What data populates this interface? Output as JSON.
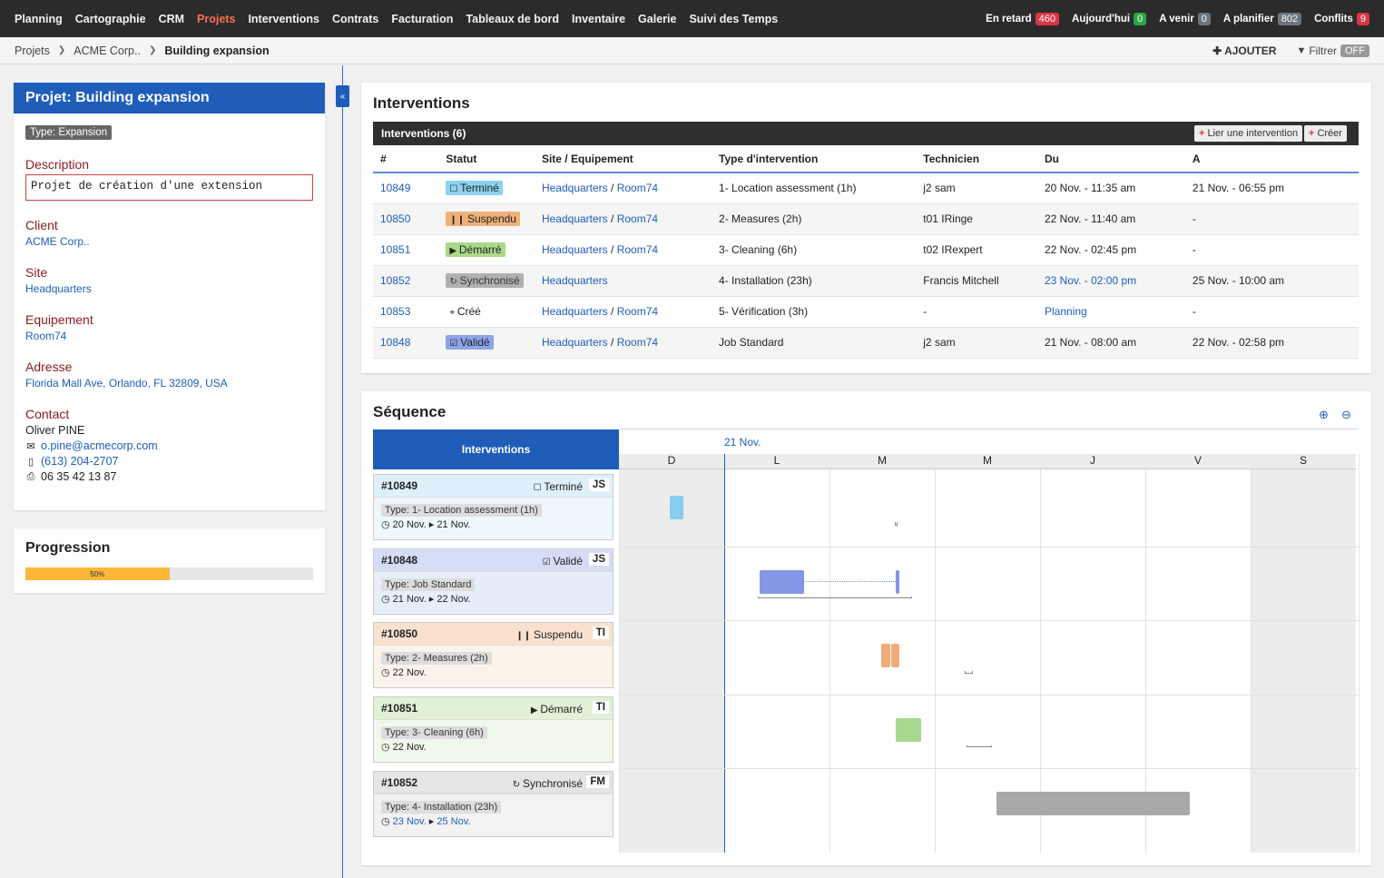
{
  "nav": {
    "items": [
      "Planning",
      "Cartographie",
      "CRM",
      "Projets",
      "Interventions",
      "Contrats",
      "Facturation",
      "Tableaux de bord",
      "Inventaire",
      "Galerie",
      "Suivi des Temps"
    ],
    "active": "Projets",
    "counters": [
      {
        "label": "En retard",
        "count": "460",
        "color": "#dc3545"
      },
      {
        "label": "Aujourd'hui",
        "count": "0",
        "color": "#28a745"
      },
      {
        "label": "A venir",
        "count": "0",
        "color": "#6c757d"
      },
      {
        "label": "A planifier",
        "count": "802",
        "color": "#6c757d"
      },
      {
        "label": "Conflits",
        "count": "9",
        "color": "#dc3545"
      }
    ]
  },
  "breadcrumb": {
    "items": [
      "Projets",
      "ACME Corp..",
      "Building expansion"
    ],
    "add_label": "AJOUTER",
    "filter_label": "Filtrer",
    "filter_state": "OFF"
  },
  "project": {
    "title": "Projet: Building expansion",
    "type": "Type: Expansion",
    "description_label": "Description",
    "description": "Projet de création d'une extension",
    "client_label": "Client",
    "client": "ACME Corp..",
    "site_label": "Site",
    "site": "Headquarters",
    "equipment_label": "Equipement",
    "equipment": "Room74",
    "address_label": "Adresse",
    "address": "Florida Mall Ave, Orlando, FL 32809, USA",
    "contact_label": "Contact",
    "contact_name": "Oliver PINE",
    "contact_email": "o.pine@acmecorp.com",
    "contact_phone": "(613) 204-2707",
    "contact_fax": "06 35 42 13 87"
  },
  "progress": {
    "title": "Progression",
    "percent": 50,
    "label": "50%"
  },
  "interventions": {
    "title": "Interventions",
    "header": "Interventions (6)",
    "link_btn": "Lier une intervention",
    "create_btn": "Créer",
    "columns": [
      "#",
      "Statut",
      "Site / Equipement",
      "Type d'intervention",
      "Technicien",
      "Du",
      "A"
    ],
    "rows": [
      {
        "id": "10849",
        "status": "Terminé",
        "status_key": "termine",
        "site": "Headquarters",
        "equip": "Room74",
        "type": "1- Location assessment (1h)",
        "tech": "j2 sam",
        "from": "20 Nov. - 11:35 am",
        "from_link": false,
        "to": "21 Nov. - 06:55 pm"
      },
      {
        "id": "10850",
        "status": "Suspendu",
        "status_key": "suspendu",
        "site": "Headquarters",
        "equip": "Room74",
        "type": "2- Measures (2h)",
        "tech": "t01 IRinge",
        "from": "22 Nov. - 11:40 am",
        "from_link": false,
        "to": "-"
      },
      {
        "id": "10851",
        "status": "Démarré",
        "status_key": "demarre",
        "site": "Headquarters",
        "equip": "Room74",
        "type": "3- Cleaning (6h)",
        "tech": "t02 IRexpert",
        "from": "22 Nov. - 02:45 pm",
        "from_link": false,
        "to": "-"
      },
      {
        "id": "10852",
        "status": "Synchronisé",
        "status_key": "sync",
        "site": "Headquarters",
        "equip": "",
        "type": "4- Installation (23h)",
        "tech": "Francis Mitchell",
        "from": "23 Nov. - 02:00 pm",
        "from_link": true,
        "to": "25 Nov. - 10:00 am"
      },
      {
        "id": "10853",
        "status": "Créé",
        "status_key": "cree",
        "site": "Headquarters",
        "equip": "Room74",
        "type": "5- Vérification (3h)",
        "tech": "-",
        "from": "Planning",
        "from_link": true,
        "to": "-"
      },
      {
        "id": "10848",
        "status": "Validé",
        "status_key": "valide",
        "site": "Headquarters",
        "equip": "Room74",
        "type": "Job Standard",
        "tech": "j2 sam",
        "from": "21 Nov. - 08:00 am",
        "from_link": false,
        "to": "22 Nov. - 02:58 pm"
      }
    ]
  },
  "sequence": {
    "title": "Séquence",
    "side_header": "Interventions",
    "date_label": "21 Nov.",
    "days": [
      "D",
      "L",
      "M",
      "M",
      "J",
      "V",
      "S"
    ],
    "items": [
      {
        "num": "#10849",
        "status": "Terminé",
        "tech": "JS",
        "type": "Type: 1- Location assessment (1h)",
        "from": "20 Nov.",
        "to": "21 Nov.",
        "dates_link": false,
        "head_color": "#dff0fa",
        "body_color": "#eef7fc",
        "bar_color": "#86cdee"
      },
      {
        "num": "#10848",
        "status": "Validé",
        "tech": "JS",
        "type": "Type: Job Standard",
        "from": "21 Nov.",
        "to": "22 Nov.",
        "dates_link": false,
        "head_color": "#d5dcf5",
        "body_color": "#e8edfa",
        "bar_color": "#8496e6"
      },
      {
        "num": "#10850",
        "status": "Suspendu",
        "tech": "TI",
        "type": "Type: 2- Measures (2h)",
        "from": "22 Nov.",
        "to": "",
        "dates_link": false,
        "head_color": "#f8e2cf",
        "body_color": "#fcf3eb",
        "bar_color": "#f0ac78"
      },
      {
        "num": "#10851",
        "status": "Démarré",
        "tech": "TI",
        "type": "Type: 3- Cleaning (6h)",
        "from": "22 Nov.",
        "to": "",
        "dates_link": false,
        "head_color": "#e0f1d6",
        "body_color": "#f0f8ec",
        "bar_color": "#a7d88d"
      },
      {
        "num": "#10852",
        "status": "Synchronisé",
        "tech": "FM",
        "type": "Type: 4- Installation (23h)",
        "from": "23 Nov.",
        "to": "25 Nov.",
        "dates_link": true,
        "head_color": "#e5e5e5",
        "body_color": "#f2f2f2",
        "bar_color": "#a9a9a9"
      }
    ]
  }
}
